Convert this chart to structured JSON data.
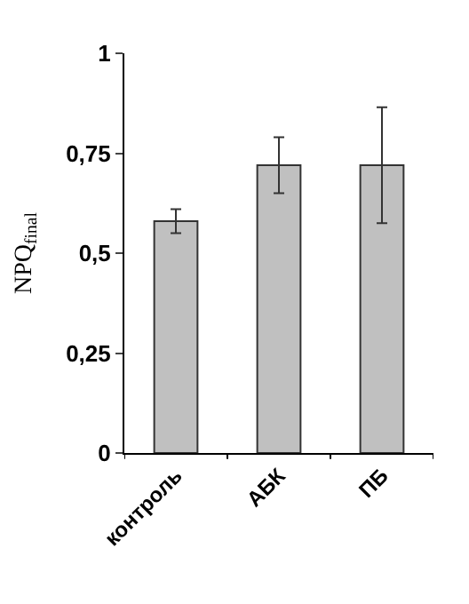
{
  "chart_data": {
    "type": "bar",
    "ylabel": "NPQ$_{final}$",
    "categories": [
      "контроль",
      "АБК",
      "ПБ"
    ],
    "values": [
      0.58,
      0.72,
      0.72
    ],
    "errors": [
      0.03,
      0.07,
      0.145
    ],
    "color": "#c0c0c0",
    "ylim": [
      0,
      1
    ],
    "yticks": [
      {
        "value": 0,
        "label": "0"
      },
      {
        "value": 0.25,
        "label": "0,25"
      },
      {
        "value": 0.5,
        "label": "0,5"
      },
      {
        "value": 0.75,
        "label": "0,75"
      },
      {
        "value": 1,
        "label": "1"
      }
    ]
  }
}
